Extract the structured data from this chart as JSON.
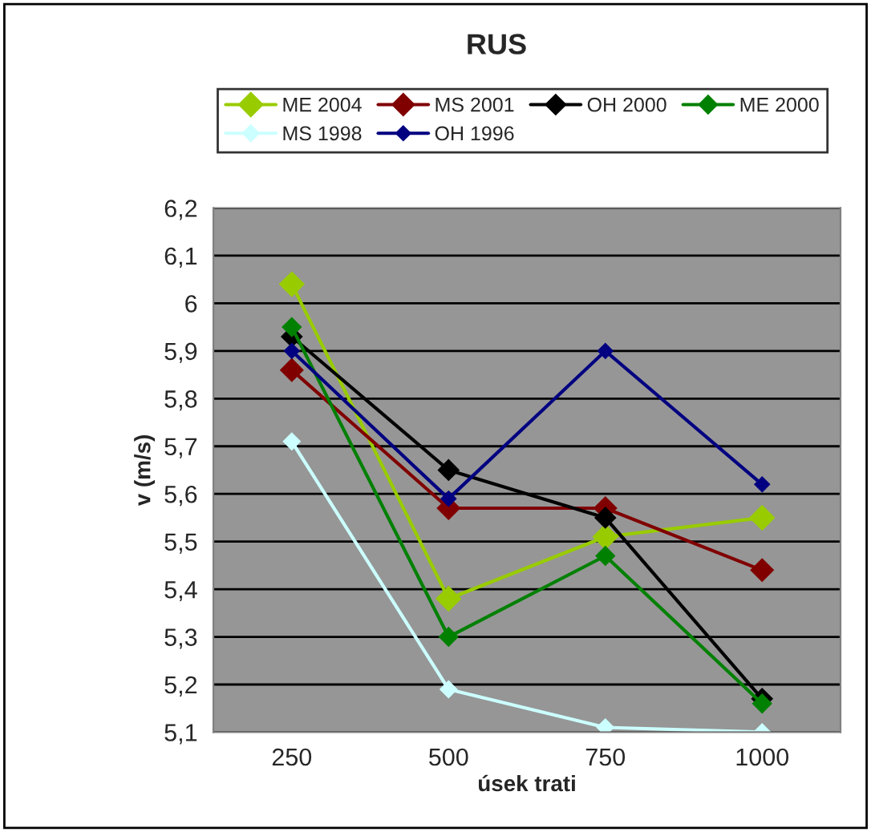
{
  "chart_data": {
    "type": "line",
    "title": "RUS",
    "xlabel": "úsek trati",
    "ylabel": "v (m/s)",
    "categories": [
      "250",
      "500",
      "750",
      "1000"
    ],
    "series": [
      {
        "name": "ME 2004",
        "color": "#99cc00",
        "values": [
          6.04,
          5.38,
          5.51,
          5.55
        ]
      },
      {
        "name": "MS 2001",
        "color": "#800000",
        "values": [
          5.86,
          5.57,
          5.57,
          5.44
        ]
      },
      {
        "name": "OH 2000",
        "color": "#000000",
        "values": [
          5.93,
          5.65,
          5.55,
          5.17
        ]
      },
      {
        "name": "ME 2000",
        "color": "#008000",
        "values": [
          5.95,
          5.3,
          5.47,
          5.16
        ]
      },
      {
        "name": "MS 1998",
        "color": "#ccffff",
        "values": [
          5.71,
          5.19,
          5.11,
          5.1
        ]
      },
      {
        "name": "OH 1996",
        "color": "#000080",
        "values": [
          5.9,
          5.59,
          5.9,
          5.62
        ]
      }
    ],
    "ylim": [
      5.1,
      6.2
    ],
    "yticks": [
      {
        "value": 5.1,
        "label": "5,1"
      },
      {
        "value": 5.2,
        "label": "5,2"
      },
      {
        "value": 5.3,
        "label": "5,3"
      },
      {
        "value": 5.4,
        "label": "5,4"
      },
      {
        "value": 5.5,
        "label": "5,5"
      },
      {
        "value": 5.6,
        "label": "5,6"
      },
      {
        "value": 5.7,
        "label": "5,7"
      },
      {
        "value": 5.8,
        "label": "5,8"
      },
      {
        "value": 5.9,
        "label": "5,9"
      },
      {
        "value": 6,
        "label": "6"
      },
      {
        "value": 6.1,
        "label": "6,1"
      },
      {
        "value": 6.2,
        "label": "6,2"
      }
    ],
    "grid": "y",
    "legend": "top",
    "marker": "diamond",
    "line_style": "solid"
  }
}
